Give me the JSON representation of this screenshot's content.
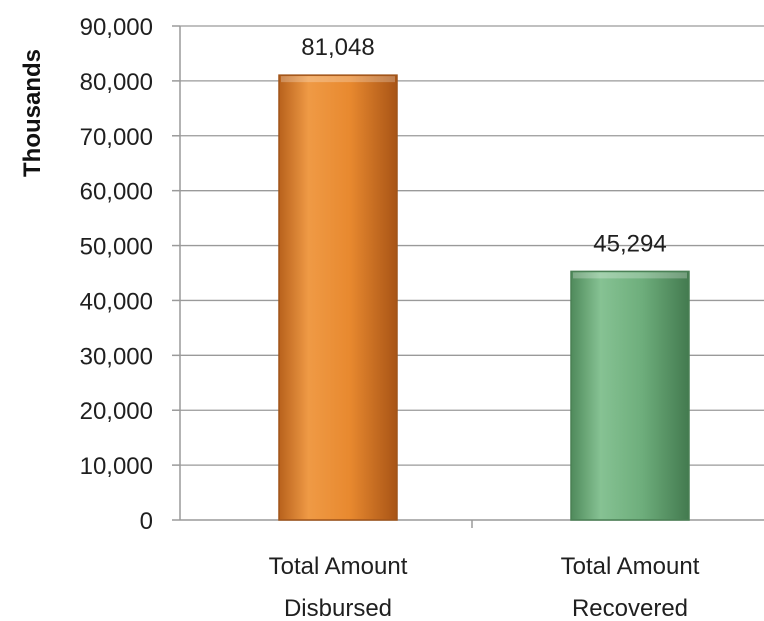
{
  "chart_data": {
    "type": "bar",
    "title": "",
    "xlabel": "",
    "ylabel": "Thousands",
    "categories": [
      [
        "Total Amount",
        "Disbursed"
      ],
      [
        "Total Amount",
        "Recovered"
      ]
    ],
    "values": [
      81048,
      45294
    ],
    "data_labels": [
      "81,048",
      "45,294"
    ],
    "ylim": [
      0,
      90000
    ],
    "yticks": [
      0,
      10000,
      20000,
      30000,
      40000,
      50000,
      60000,
      70000,
      80000,
      90000
    ],
    "ytick_labels": [
      "0",
      "10,000",
      "20,000",
      "30,000",
      "40,000",
      "50,000",
      "60,000",
      "70,000",
      "80,000",
      "90,000"
    ],
    "grid": true,
    "legend": "none",
    "colors": [
      "#e8892f",
      "#6eae7c"
    ]
  }
}
